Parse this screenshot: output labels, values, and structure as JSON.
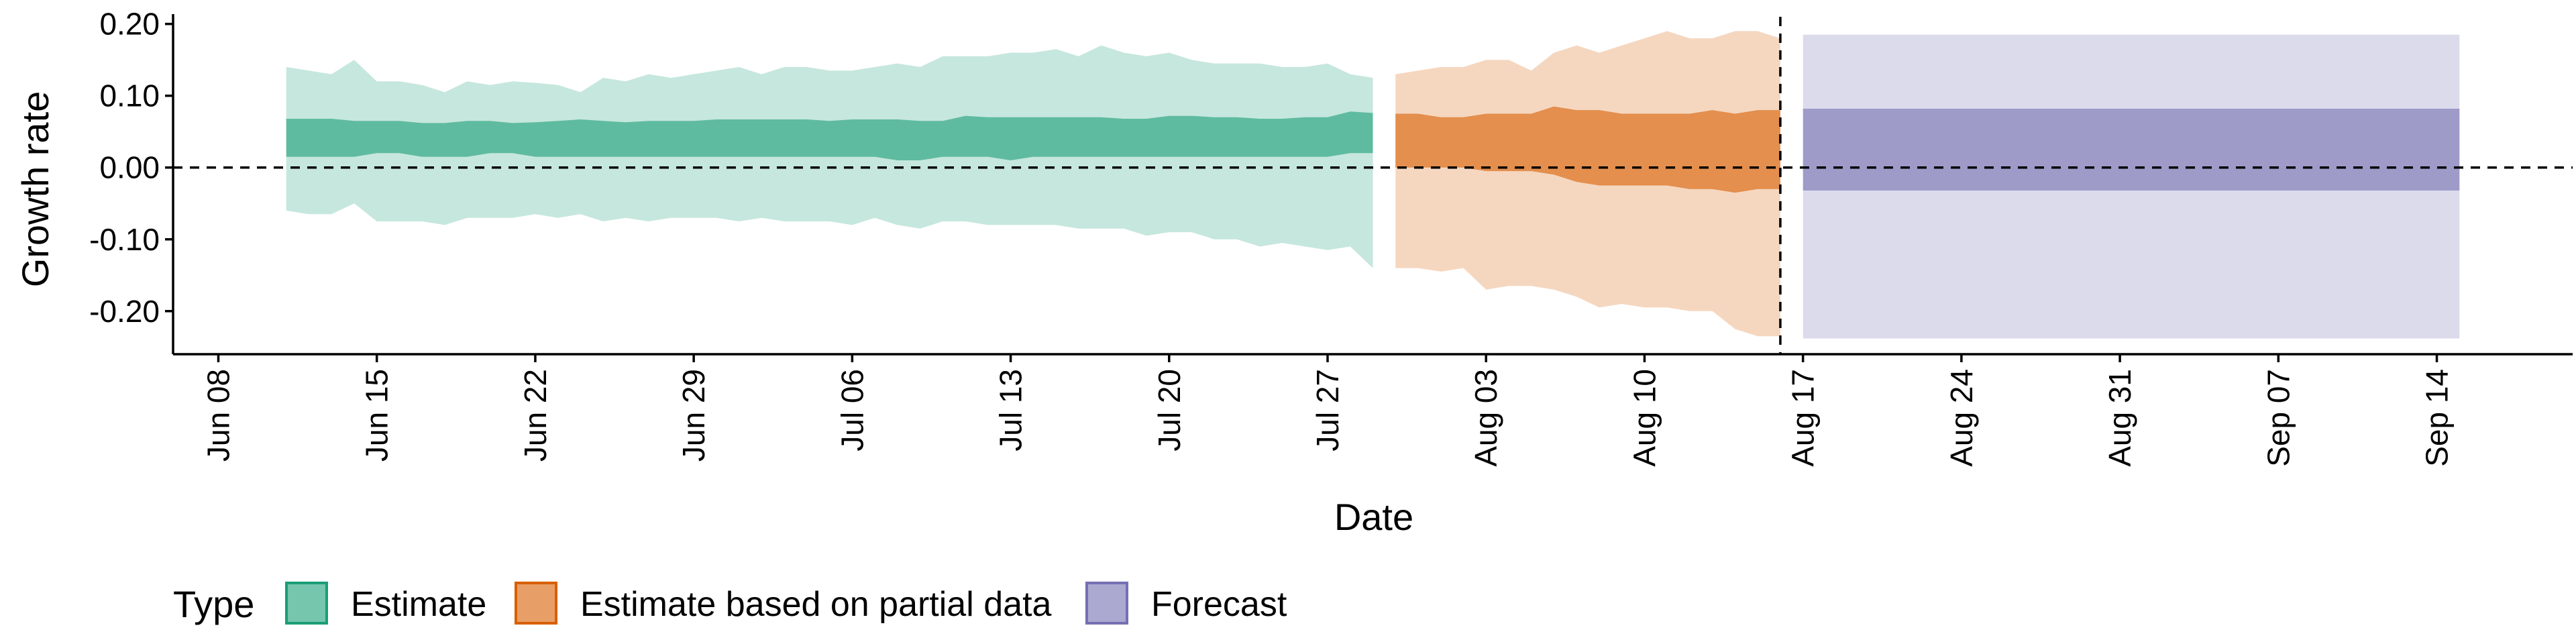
{
  "chart_data": {
    "type": "area",
    "xlabel": "Date",
    "ylabel": "Growth rate",
    "x_ticks": [
      "Jun 08",
      "Jun 15",
      "Jun 22",
      "Jun 29",
      "Jul 06",
      "Jul 13",
      "Jul 20",
      "Jul 27",
      "Aug 03",
      "Aug 10",
      "Aug 17",
      "Aug 24",
      "Aug 31",
      "Sep 07",
      "Sep 14"
    ],
    "y_ticks": [
      "-0.20",
      "-0.10",
      "0.00",
      "0.10",
      "0.20"
    ],
    "y_tick_values": [
      -0.2,
      -0.1,
      0.0,
      0.1,
      0.2
    ],
    "ylim": [
      -0.26,
      0.21
    ],
    "xlim": [
      "2020-06-06",
      "2020-09-20"
    ],
    "reference_line_y": 0.0,
    "vertical_line_date": "2020-08-16",
    "grid": false,
    "legend": {
      "title": "Type",
      "position": "bottom-left",
      "entries": [
        {
          "label": "Estimate",
          "color": "#1b9e77"
        },
        {
          "label": "Estimate based on partial data",
          "color": "#d95f02"
        },
        {
          "label": "Forecast",
          "color": "#7570b3"
        }
      ]
    },
    "series": [
      {
        "name": "Estimate",
        "color": "#1b9e77",
        "x": [
          "2020-06-11",
          "2020-06-12",
          "2020-06-13",
          "2020-06-14",
          "2020-06-15",
          "2020-06-16",
          "2020-06-17",
          "2020-06-18",
          "2020-06-19",
          "2020-06-20",
          "2020-06-21",
          "2020-06-22",
          "2020-06-23",
          "2020-06-24",
          "2020-06-25",
          "2020-06-26",
          "2020-06-27",
          "2020-06-28",
          "2020-06-29",
          "2020-06-30",
          "2020-07-01",
          "2020-07-02",
          "2020-07-03",
          "2020-07-04",
          "2020-07-05",
          "2020-07-06",
          "2020-07-07",
          "2020-07-08",
          "2020-07-09",
          "2020-07-10",
          "2020-07-11",
          "2020-07-12",
          "2020-07-13",
          "2020-07-14",
          "2020-07-15",
          "2020-07-16",
          "2020-07-17",
          "2020-07-18",
          "2020-07-19",
          "2020-07-20",
          "2020-07-21",
          "2020-07-22",
          "2020-07-23",
          "2020-07-24",
          "2020-07-25",
          "2020-07-26",
          "2020-07-27",
          "2020-07-28",
          "2020-07-29"
        ],
        "lower_90": [
          -0.06,
          -0.065,
          -0.065,
          -0.05,
          -0.075,
          -0.075,
          -0.075,
          -0.08,
          -0.07,
          -0.07,
          -0.07,
          -0.065,
          -0.07,
          -0.065,
          -0.075,
          -0.07,
          -0.075,
          -0.07,
          -0.07,
          -0.07,
          -0.075,
          -0.07,
          -0.075,
          -0.075,
          -0.075,
          -0.08,
          -0.07,
          -0.08,
          -0.085,
          -0.075,
          -0.075,
          -0.08,
          -0.08,
          -0.08,
          -0.08,
          -0.085,
          -0.085,
          -0.085,
          -0.095,
          -0.09,
          -0.09,
          -0.1,
          -0.1,
          -0.11,
          -0.105,
          -0.11,
          -0.115,
          -0.11,
          -0.14
        ],
        "lower_50": [
          0.015,
          0.015,
          0.015,
          0.015,
          0.02,
          0.02,
          0.015,
          0.015,
          0.015,
          0.02,
          0.02,
          0.015,
          0.015,
          0.015,
          0.015,
          0.015,
          0.015,
          0.015,
          0.015,
          0.015,
          0.015,
          0.015,
          0.015,
          0.015,
          0.015,
          0.015,
          0.015,
          0.01,
          0.01,
          0.015,
          0.015,
          0.015,
          0.01,
          0.015,
          0.015,
          0.015,
          0.015,
          0.015,
          0.015,
          0.015,
          0.015,
          0.015,
          0.015,
          0.015,
          0.015,
          0.015,
          0.015,
          0.02,
          0.02
        ],
        "upper_50": [
          0.068,
          0.068,
          0.068,
          0.065,
          0.065,
          0.065,
          0.062,
          0.062,
          0.065,
          0.065,
          0.062,
          0.063,
          0.065,
          0.067,
          0.065,
          0.063,
          0.065,
          0.065,
          0.065,
          0.067,
          0.067,
          0.067,
          0.067,
          0.067,
          0.065,
          0.067,
          0.067,
          0.067,
          0.065,
          0.065,
          0.072,
          0.07,
          0.07,
          0.07,
          0.07,
          0.07,
          0.07,
          0.068,
          0.068,
          0.072,
          0.072,
          0.07,
          0.07,
          0.068,
          0.068,
          0.07,
          0.07,
          0.078,
          0.076
        ],
        "upper_90": [
          0.14,
          0.135,
          0.13,
          0.15,
          0.12,
          0.12,
          0.115,
          0.105,
          0.12,
          0.115,
          0.12,
          0.118,
          0.115,
          0.105,
          0.125,
          0.12,
          0.13,
          0.125,
          0.13,
          0.135,
          0.14,
          0.13,
          0.14,
          0.14,
          0.135,
          0.135,
          0.14,
          0.145,
          0.14,
          0.155,
          0.155,
          0.155,
          0.16,
          0.16,
          0.165,
          0.155,
          0.17,
          0.16,
          0.155,
          0.16,
          0.15,
          0.145,
          0.145,
          0.145,
          0.14,
          0.14,
          0.145,
          0.13,
          0.125
        ]
      },
      {
        "name": "Estimate based on partial data",
        "color": "#d95f02",
        "x": [
          "2020-07-30",
          "2020-07-31",
          "2020-08-01",
          "2020-08-02",
          "2020-08-03",
          "2020-08-04",
          "2020-08-05",
          "2020-08-06",
          "2020-08-07",
          "2020-08-08",
          "2020-08-09",
          "2020-08-10",
          "2020-08-11",
          "2020-08-12",
          "2020-08-13",
          "2020-08-14",
          "2020-08-15",
          "2020-08-16"
        ],
        "lower_90": [
          -0.14,
          -0.14,
          -0.145,
          -0.14,
          -0.17,
          -0.165,
          -0.165,
          -0.17,
          -0.18,
          -0.195,
          -0.19,
          -0.195,
          -0.195,
          -0.2,
          -0.2,
          -0.225,
          -0.235,
          -0.235
        ],
        "lower_50": [
          0.0,
          0.0,
          0.0,
          0.0,
          -0.005,
          -0.005,
          -0.005,
          -0.01,
          -0.02,
          -0.025,
          -0.025,
          -0.025,
          -0.025,
          -0.03,
          -0.03,
          -0.035,
          -0.03,
          -0.03
        ],
        "upper_50": [
          0.075,
          0.075,
          0.07,
          0.07,
          0.075,
          0.075,
          0.075,
          0.085,
          0.08,
          0.08,
          0.075,
          0.075,
          0.075,
          0.075,
          0.08,
          0.075,
          0.08,
          0.08
        ],
        "upper_90": [
          0.13,
          0.135,
          0.14,
          0.14,
          0.15,
          0.15,
          0.135,
          0.16,
          0.17,
          0.16,
          0.17,
          0.18,
          0.19,
          0.18,
          0.18,
          0.19,
          0.19,
          0.18
        ]
      },
      {
        "name": "Forecast",
        "color": "#7570b3",
        "x": [
          "2020-08-17",
          "2020-09-15"
        ],
        "lower_90": [
          -0.238,
          -0.238
        ],
        "lower_50": [
          -0.032,
          -0.032
        ],
        "upper_50": [
          0.082,
          0.082
        ],
        "upper_90": [
          0.185,
          0.185
        ]
      }
    ]
  }
}
